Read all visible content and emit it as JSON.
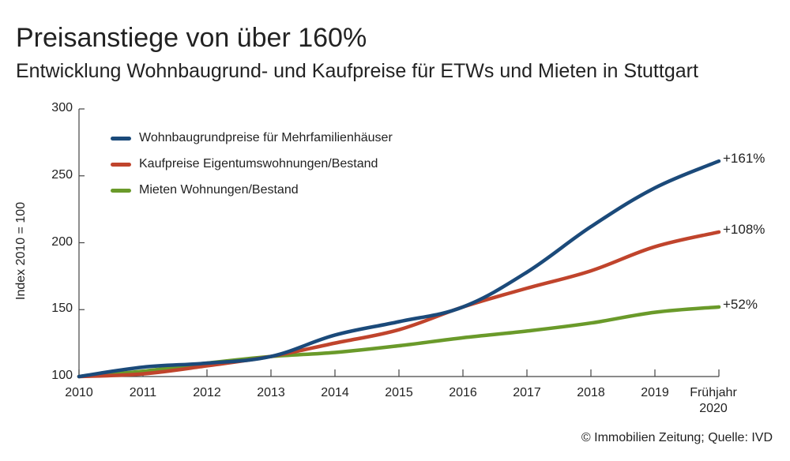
{
  "header": {
    "title": "Preisanstiege von über 160%",
    "subtitle": "Entwicklung Wohnbaugrund- und Kaufpreise für ETWs und Mieten in Stuttgart"
  },
  "footer": {
    "source": "© Immobilien Zeitung; Quelle: IVD"
  },
  "chart_data": {
    "type": "line",
    "title": "Preisanstiege von über 160%",
    "subtitle": "Entwicklung Wohnbaugrund- und Kaufpreise für ETWs und Mieten in Stuttgart",
    "xlabel": "",
    "ylabel": "Index 2010 = 100",
    "ylim": [
      100,
      300
    ],
    "yticks": [
      "100",
      "150",
      "200",
      "250",
      "300"
    ],
    "categories": [
      "2010",
      "2011",
      "2012",
      "2013",
      "2014",
      "2015",
      "2016",
      "2017",
      "2018",
      "2019",
      "Frühjahr 2020"
    ],
    "category_lines": [
      [
        "2010"
      ],
      [
        "2011"
      ],
      [
        "2012"
      ],
      [
        "2013"
      ],
      [
        "2014"
      ],
      [
        "2015"
      ],
      [
        "2016"
      ],
      [
        "2017"
      ],
      [
        "2018"
      ],
      [
        "2019"
      ],
      [
        "Frühjahr",
        "2020"
      ]
    ],
    "legend_position": "top-left",
    "grid": false,
    "series": [
      {
        "name": "Wohnbaugrundpreise für Mehrfamilienhäuser",
        "color": "#1b4a7a",
        "values": [
          100,
          107,
          110,
          115,
          131,
          141,
          152,
          178,
          212,
          241,
          261
        ],
        "end_label": "+161%"
      },
      {
        "name": "Kaufpreise Eigentumswohnungen/Bestand",
        "color": "#c0442c",
        "values": [
          100,
          102,
          108,
          115,
          125,
          135,
          152,
          166,
          179,
          197,
          208
        ],
        "end_label": "+108%"
      },
      {
        "name": "Mieten Wohnungen/Bestand",
        "color": "#6a9a2a",
        "values": [
          100,
          104,
          110,
          115,
          118,
          123,
          129,
          134,
          140,
          148,
          152
        ],
        "end_label": "+52%"
      }
    ]
  }
}
